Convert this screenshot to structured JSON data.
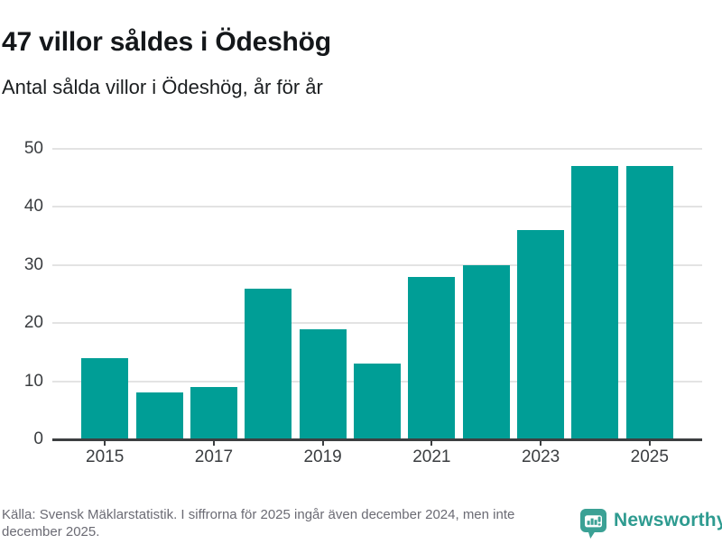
{
  "header": {
    "title": "47 villor såldes i Ödeshög",
    "subtitle": "Antal sålda villor i Ödeshög, år för år"
  },
  "chart_data": {
    "type": "bar",
    "title": "47 villor såldes i Ödeshög",
    "subtitle": "Antal sålda villor i Ödeshög, år för år",
    "categories": [
      "2015",
      "2016",
      "2017",
      "2018",
      "2019",
      "2020",
      "2021",
      "2022",
      "2023",
      "2024",
      "2025"
    ],
    "values": [
      14,
      8,
      9,
      26,
      19,
      13,
      28,
      30,
      36,
      47,
      47
    ],
    "x_tick_labels": [
      "2015",
      "2017",
      "2019",
      "2021",
      "2023",
      "2025"
    ],
    "y_ticks": [
      0,
      10,
      20,
      30,
      40,
      50
    ],
    "ylim": [
      0,
      50
    ],
    "xlabel": "",
    "ylabel": "",
    "grid": "horizontal",
    "legend": "none",
    "bar_color": "#009E96"
  },
  "footer": {
    "source_text": "Källa: Svensk Mäklarstatistik. I siffrorna för 2025 ingår även december 2024, men inte december 2025.",
    "brand_name": "Newsworthy"
  },
  "colors": {
    "bar": "#009E96",
    "grid": "#E3E3E3",
    "axis": "#3C3F41",
    "brand_teal": "#2E9B90",
    "logo_teal": "#3BA195",
    "title_text": "#14171A",
    "muted_text": "#6B6B74"
  }
}
